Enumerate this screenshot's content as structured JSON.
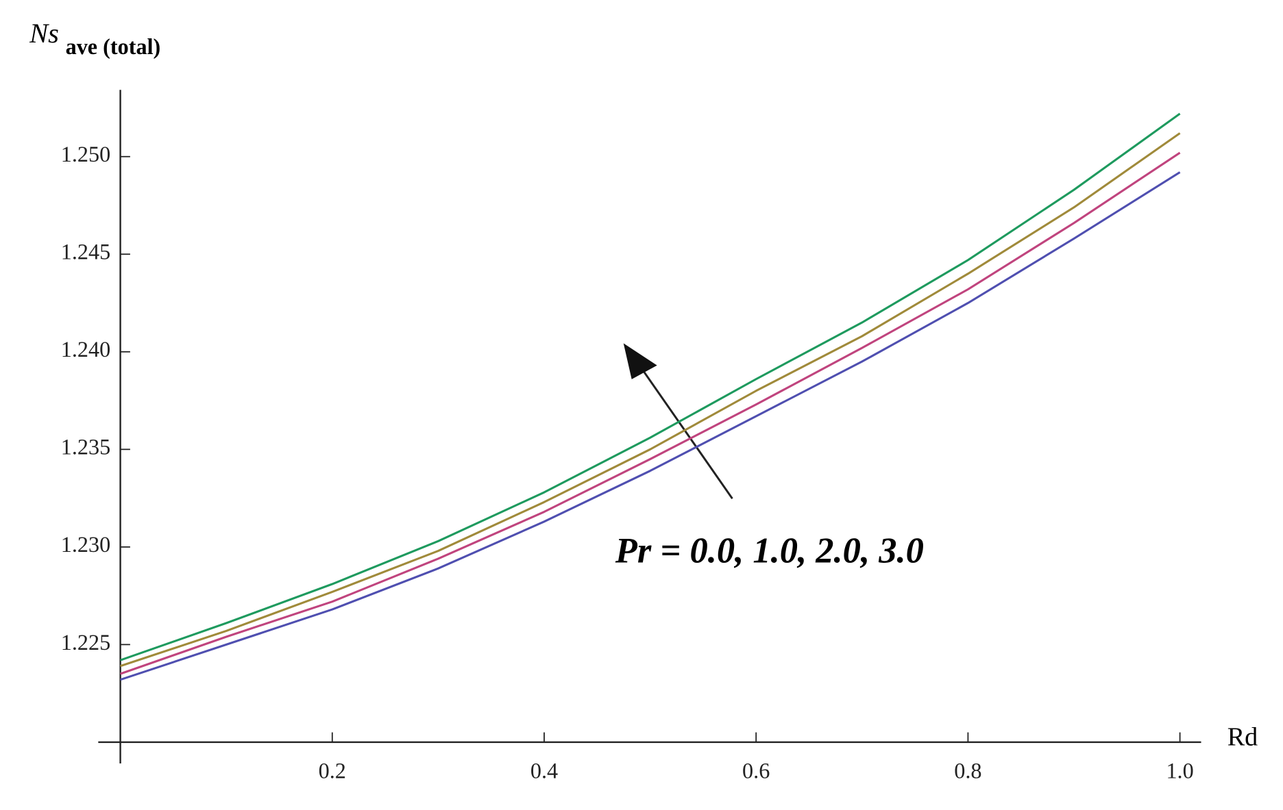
{
  "chart_data": {
    "type": "line",
    "y_label": "Ns",
    "y_label_sub": "ave (total)",
    "x_label": "Rd",
    "annotation": "Pr = 0.0, 1.0, 2.0, 3.0",
    "x": [
      0,
      0.1,
      0.2,
      0.3,
      0.4,
      0.5,
      0.6,
      0.7,
      0.8,
      0.9,
      1.0
    ],
    "series": [
      {
        "color": "#4f4fb0",
        "values": [
          1.2232,
          1.225,
          1.2268,
          1.2289,
          1.2313,
          1.2339,
          1.2367,
          1.2395,
          1.2425,
          1.2458,
          1.2492
        ]
      },
      {
        "color": "#c0447e",
        "values": [
          1.2235,
          1.2254,
          1.2272,
          1.2294,
          1.2318,
          1.2345,
          1.2373,
          1.2402,
          1.2432,
          1.2466,
          1.2502
        ]
      },
      {
        "color": "#a08a3a",
        "values": [
          1.2239,
          1.2257,
          1.2277,
          1.2298,
          1.2323,
          1.235,
          1.238,
          1.2408,
          1.244,
          1.2474,
          1.2512
        ]
      },
      {
        "color": "#1e9a5e",
        "values": [
          1.2242,
          1.2261,
          1.2281,
          1.2303,
          1.2328,
          1.2356,
          1.2386,
          1.2415,
          1.2447,
          1.2483,
          1.2522
        ]
      }
    ],
    "xlim": [
      0,
      1.02
    ],
    "ylim": [
      1.22,
      1.2533
    ],
    "xticks": [
      0.2,
      0.4,
      0.6,
      0.8,
      {
        "value": 1.0,
        "label": "1.0"
      }
    ],
    "yticks": [
      {
        "value": 1.225,
        "label": "1.225"
      },
      {
        "value": 1.23,
        "label": "1.230"
      },
      {
        "value": 1.235,
        "label": "1.235"
      },
      {
        "value": 1.24,
        "label": "1.240"
      },
      {
        "value": 1.245,
        "label": "1.245"
      },
      {
        "value": 1.25,
        "label": "1.250"
      }
    ],
    "grid": false
  }
}
